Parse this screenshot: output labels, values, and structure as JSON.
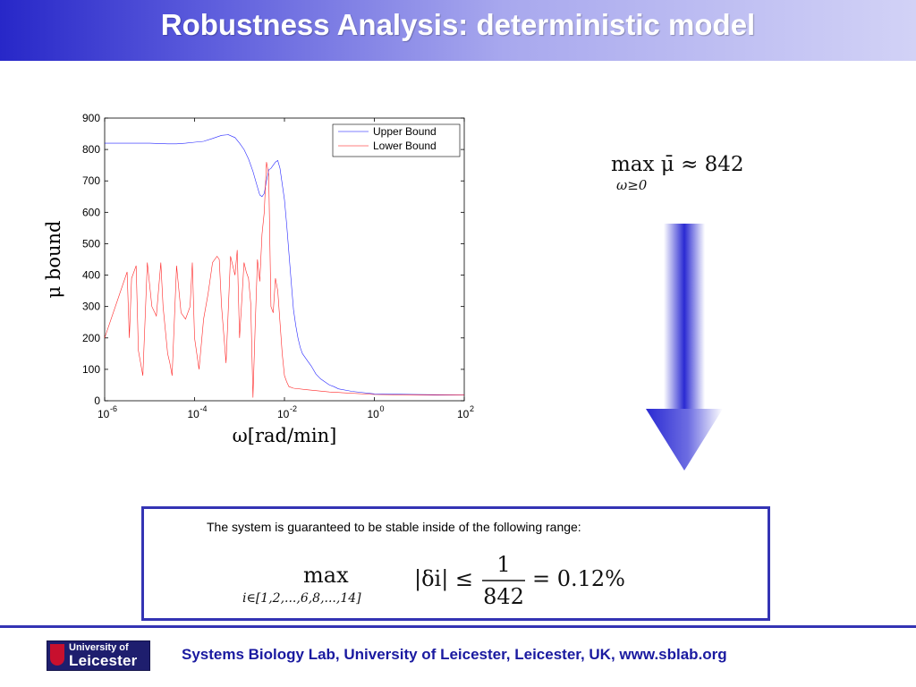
{
  "slide": {
    "title": "Robustness Analysis: deterministic model"
  },
  "chart_data": {
    "type": "line",
    "xscale": "log",
    "xlim": [
      1e-06,
      100
    ],
    "ylim": [
      0,
      900
    ],
    "yticks": [
      0,
      100,
      200,
      300,
      400,
      500,
      600,
      700,
      800,
      900
    ],
    "ytick_labels": [
      "0",
      "100",
      "200",
      "300",
      "400",
      "500",
      "600",
      "700",
      "800",
      "900"
    ],
    "xtick_labels": [
      {
        "base": "10",
        "exp": "-6"
      },
      {
        "base": "10",
        "exp": "-4"
      },
      {
        "base": "10",
        "exp": "-2"
      },
      {
        "base": "10",
        "exp": "0"
      },
      {
        "base": "10",
        "exp": "2"
      }
    ],
    "xlabel": "ω[rad/min]",
    "ylabel": "μ bound",
    "legend_position": "top-right",
    "series": [
      {
        "name": "Upper Bound",
        "color": "#0000ff",
        "x": [
          -6,
          -5.5,
          -5,
          -4.6,
          -4.4,
          -4.2,
          -4,
          -3.8,
          -3.6,
          -3.4,
          -3.25,
          -3.1,
          -3.0,
          -2.9,
          -2.8,
          -2.7,
          -2.6,
          -2.55,
          -2.5,
          -2.45,
          -2.4,
          -2.35,
          -2.3,
          -2.25,
          -2.2,
          -2.15,
          -2.1,
          -2.05,
          -2.0,
          -1.95,
          -1.9,
          -1.85,
          -1.8,
          -1.75,
          -1.7,
          -1.65,
          -1.6,
          -1.5,
          -1.4,
          -1.3,
          -1.2,
          -1.1,
          -1.0,
          -0.9,
          -0.8,
          -0.5,
          0,
          1,
          2
        ],
        "y": [
          820,
          820,
          820,
          818,
          818,
          820,
          823,
          826,
          835,
          845,
          847,
          838,
          820,
          800,
          770,
          730,
          680,
          655,
          650,
          660,
          700,
          735,
          740,
          750,
          760,
          765,
          740,
          690,
          640,
          560,
          470,
          380,
          290,
          240,
          200,
          170,
          150,
          130,
          110,
          85,
          70,
          60,
          50,
          45,
          38,
          30,
          22,
          20,
          18
        ]
      },
      {
        "name": "Lower Bound",
        "color": "#ff0000",
        "x": [
          -6,
          -5.5,
          -5.45,
          -5.4,
          -5.35,
          -5.3,
          -5.25,
          -5.15,
          -5.05,
          -4.95,
          -4.85,
          -4.75,
          -4.7,
          -4.6,
          -4.55,
          -4.5,
          -4.4,
          -4.3,
          -4.2,
          -4.1,
          -4.05,
          -4.0,
          -3.9,
          -3.8,
          -3.7,
          -3.6,
          -3.5,
          -3.45,
          -3.4,
          -3.3,
          -3.2,
          -3.1,
          -3.05,
          -3.0,
          -2.9,
          -2.85,
          -2.8,
          -2.75,
          -2.7,
          -2.65,
          -2.6,
          -2.55,
          -2.5,
          -2.45,
          -2.4,
          -2.35,
          -2.3,
          -2.25,
          -2.2,
          -2.15,
          -2.1,
          -2.05,
          -2.0,
          -1.95,
          -1.9,
          -1.8,
          -1.5,
          -1.0,
          0,
          1,
          2
        ],
        "y": [
          200,
          410,
          200,
          390,
          410,
          430,
          160,
          80,
          440,
          300,
          270,
          440,
          300,
          150,
          120,
          80,
          430,
          280,
          260,
          300,
          440,
          200,
          100,
          260,
          340,
          440,
          460,
          450,
          300,
          120,
          460,
          400,
          480,
          200,
          440,
          410,
          390,
          310,
          10,
          240,
          450,
          380,
          530,
          600,
          760,
          720,
          300,
          280,
          390,
          350,
          250,
          150,
          80,
          60,
          45,
          40,
          35,
          28,
          20,
          18,
          18
        ]
      }
    ]
  },
  "max_mu_equation": "max μ̄ ≈ 842",
  "max_mu_subscript": "ω≥0",
  "result": {
    "caption": "The system is guaranteed to be stable inside of the following range:",
    "op": "max",
    "index_set": "i∈[1,2,...,6,8,...,14]",
    "expr": "|δi| ≤",
    "numerator": "1",
    "denominator": "842",
    "value": "= 0.12%"
  },
  "footer": {
    "text": "Systems Biology Lab, University of Leicester, Leicester, UK, www.sblab.org",
    "logo_line1": "University of",
    "logo_line2": "Leicester"
  },
  "colors": {
    "accent": "#3434b4",
    "footer_text": "#1a1aa0",
    "upper_bound": "#0000ff",
    "lower_bound": "#ff0000"
  }
}
